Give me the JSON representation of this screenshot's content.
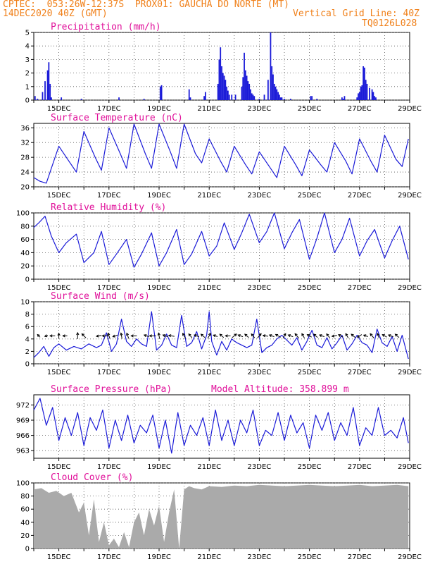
{
  "header": {
    "line1_left": "CPTEC:  053:26W-12:37S  PROX01: GAUCHA DO NORTE (MT)",
    "line2_left": "14DEC2020 40Z (GMT)",
    "line2_right": "Vertical Grid Line: 40Z",
    "line3_right": "TQ0126L028"
  },
  "x_ticks": [
    "15DEC",
    "17DEC",
    "19DEC",
    "21DEC",
    "23DEC",
    "25DEC",
    "27DEC",
    "29DEC"
  ],
  "chart_data": [
    {
      "type": "bar",
      "title": "Precipitation (mm/h)",
      "ylim": [
        0,
        5
      ],
      "yticks": [
        0,
        1,
        2,
        3,
        4,
        5
      ],
      "color": "#1a1ad8",
      "x_days": [
        14.05,
        14.15,
        14.35,
        14.45,
        14.55,
        14.6,
        14.65,
        14.7,
        15.1,
        15.9,
        17.4,
        18.4,
        19.05,
        19.1,
        20.2,
        20.25,
        20.8,
        20.85,
        21.35,
        21.4,
        21.45,
        21.5,
        21.55,
        21.6,
        21.65,
        21.7,
        21.75,
        21.8,
        21.9,
        22.05,
        22.3,
        22.35,
        22.4,
        22.45,
        22.5,
        22.55,
        22.6,
        22.65,
        22.7,
        22.75,
        22.8,
        23.0,
        23.2,
        23.35,
        23.45,
        23.5,
        23.55,
        23.6,
        23.65,
        23.7,
        23.75,
        23.8,
        23.85,
        23.9,
        24.0,
        24.25,
        25.05,
        25.1,
        25.3,
        26.3,
        26.35,
        26.4,
        26.9,
        26.95,
        27.0,
        27.05,
        27.1,
        27.15,
        27.2,
        27.25,
        27.3,
        27.4,
        27.5,
        27.55,
        27.6,
        27.65
      ],
      "values": [
        0.3,
        0.1,
        0.6,
        1.4,
        2.2,
        2.8,
        1.2,
        0.2,
        0.2,
        0.1,
        0.2,
        0.1,
        1.0,
        1.1,
        0.8,
        0.2,
        0.3,
        0.6,
        1.2,
        3.0,
        3.9,
        2.5,
        2.0,
        1.8,
        1.5,
        1.0,
        0.7,
        0.4,
        0.4,
        0.4,
        1.0,
        1.7,
        3.5,
        2.2,
        1.8,
        1.4,
        1.2,
        0.8,
        0.5,
        0.4,
        0.3,
        0.1,
        0.4,
        1.5,
        5.0,
        2.5,
        1.9,
        1.2,
        1.0,
        0.8,
        0.6,
        0.4,
        0.2,
        0.2,
        0.1,
        0.1,
        0.3,
        0.3,
        0.1,
        0.2,
        0.1,
        0.3,
        0.2,
        0.5,
        0.6,
        1.0,
        1.1,
        2.5,
        2.4,
        1.5,
        1.2,
        0.9,
        0.8,
        0.6,
        0.3,
        0.2
      ]
    },
    {
      "type": "line",
      "title": "Surface Temperature (nC)",
      "ylim": [
        20,
        37.2
      ],
      "yticks": [
        20,
        24,
        28,
        32,
        36
      ],
      "color": "#1a1ad8",
      "x_days": [
        14.0,
        14.25,
        14.5,
        14.75,
        15.0,
        15.4,
        15.7,
        16.0,
        16.45,
        16.7,
        17.0,
        17.45,
        17.7,
        18.0,
        18.45,
        18.7,
        19.0,
        19.45,
        19.7,
        20.0,
        20.45,
        20.7,
        21.0,
        21.45,
        21.7,
        22.0,
        22.45,
        22.7,
        23.0,
        23.45,
        23.7,
        24.0,
        24.45,
        24.7,
        25.0,
        25.45,
        25.7,
        26.0,
        26.45,
        26.7,
        27.0,
        27.45,
        27.7,
        28.0,
        28.45,
        28.7,
        28.95
      ],
      "values": [
        22.5,
        21.5,
        21.0,
        26.0,
        31.0,
        27.0,
        24.0,
        35.0,
        28.0,
        24.5,
        36.0,
        29.0,
        25.0,
        37.0,
        29.0,
        25.0,
        37.0,
        29.5,
        25.0,
        37.0,
        29.0,
        26.5,
        33.0,
        27.0,
        24.0,
        31.0,
        26.0,
        23.5,
        29.5,
        25.0,
        22.5,
        31.0,
        26.0,
        23.0,
        30.0,
        26.0,
        24.0,
        32.0,
        27.0,
        23.5,
        33.0,
        27.0,
        24.0,
        34.0,
        27.5,
        25.5,
        33.0
      ]
    },
    {
      "type": "line",
      "title": "Relative Humidity (%)",
      "ylim": [
        0,
        100
      ],
      "yticks": [
        0,
        20,
        40,
        60,
        80,
        100
      ],
      "color": "#1a1ad8",
      "x_days": [
        14.0,
        14.2,
        14.45,
        14.7,
        15.0,
        15.3,
        15.7,
        16.0,
        16.4,
        16.7,
        17.0,
        17.3,
        17.7,
        18.0,
        18.3,
        18.7,
        19.0,
        19.3,
        19.7,
        20.0,
        20.3,
        20.7,
        21.0,
        21.3,
        21.6,
        22.0,
        22.3,
        22.6,
        23.0,
        23.3,
        23.6,
        24.0,
        24.3,
        24.6,
        25.0,
        25.3,
        25.6,
        26.0,
        26.3,
        26.6,
        27.0,
        27.3,
        27.6,
        28.0,
        28.3,
        28.6,
        28.95
      ],
      "values": [
        78,
        85,
        95,
        65,
        40,
        55,
        68,
        25,
        40,
        72,
        22,
        38,
        60,
        18,
        38,
        70,
        20,
        40,
        75,
        22,
        38,
        72,
        35,
        50,
        85,
        45,
        70,
        98,
        55,
        72,
        100,
        46,
        70,
        90,
        30,
        62,
        100,
        40,
        60,
        92,
        35,
        58,
        75,
        32,
        58,
        80,
        30
      ]
    },
    {
      "type": "line",
      "title": "Surface Wind (m/s)",
      "ylim": [
        0,
        10
      ],
      "yticks": [
        0,
        2,
        4,
        6,
        8,
        10
      ],
      "color": "#1a1ad8",
      "x_days": [
        14.0,
        14.2,
        14.4,
        14.6,
        14.8,
        15.0,
        15.3,
        15.6,
        15.9,
        16.2,
        16.5,
        16.7,
        16.9,
        17.1,
        17.3,
        17.5,
        17.7,
        17.9,
        18.1,
        18.3,
        18.5,
        18.7,
        18.9,
        19.1,
        19.3,
        19.5,
        19.7,
        19.9,
        20.1,
        20.3,
        20.5,
        20.7,
        20.9,
        21.0,
        21.1,
        21.3,
        21.5,
        21.7,
        21.9,
        22.1,
        22.3,
        22.5,
        22.7,
        22.9,
        23.1,
        23.3,
        23.5,
        23.7,
        23.9,
        24.1,
        24.3,
        24.5,
        24.7,
        24.9,
        25.1,
        25.3,
        25.5,
        25.7,
        25.9,
        26.1,
        26.3,
        26.5,
        26.7,
        26.9,
        27.1,
        27.3,
        27.5,
        27.7,
        27.9,
        28.1,
        28.3,
        28.5,
        28.7,
        28.95
      ],
      "values": [
        1.0,
        1.8,
        2.8,
        1.2,
        2.6,
        3.2,
        2.2,
        2.8,
        2.4,
        3.2,
        2.6,
        3.0,
        5.0,
        2.0,
        3.2,
        7.2,
        3.6,
        2.8,
        4.0,
        3.2,
        2.8,
        8.4,
        2.2,
        3.0,
        4.8,
        3.0,
        2.6,
        7.8,
        2.8,
        3.4,
        5.2,
        2.4,
        4.6,
        8.4,
        3.6,
        1.4,
        3.6,
        2.2,
        4.0,
        3.4,
        3.0,
        2.6,
        3.0,
        7.2,
        1.8,
        2.6,
        3.0,
        4.0,
        4.6,
        3.8,
        3.0,
        4.2,
        2.2,
        3.6,
        5.4,
        3.0,
        2.6,
        4.2,
        2.4,
        3.4,
        4.6,
        2.2,
        3.2,
        4.6,
        3.4,
        3.0,
        1.8,
        5.6,
        3.4,
        2.8,
        4.4,
        2.0,
        4.6,
        0.8
      ],
      "arrows": {
        "x_days": [
          14.2,
          14.5,
          14.75,
          15.0,
          15.25,
          15.75,
          16.0,
          16.6,
          16.85,
          17.0,
          17.25,
          17.5,
          17.75,
          18.0,
          18.5,
          18.75,
          19.0,
          19.25,
          19.5,
          20.0,
          20.25,
          20.5,
          20.75,
          21.0,
          21.25,
          21.5,
          21.75,
          22.0,
          22.25,
          22.5,
          22.75,
          23.0,
          23.25,
          23.5,
          23.75,
          24.0,
          24.25,
          24.5,
          24.75,
          25.0,
          25.25,
          25.5,
          25.75,
          26.0,
          26.25,
          26.5,
          26.75,
          27.0,
          27.25,
          27.5,
          27.75,
          28.0,
          28.25,
          28.5
        ],
        "dir_deg": [
          225,
          160,
          180,
          270,
          180,
          270,
          225,
          170,
          180,
          250,
          160,
          260,
          250,
          180,
          200,
          180,
          260,
          200,
          190,
          240,
          230,
          200,
          220,
          300,
          200,
          220,
          180,
          320,
          200,
          220,
          230,
          310,
          190,
          200,
          210,
          300,
          200,
          230,
          240,
          210,
          220,
          200,
          230,
          170,
          210,
          240,
          220,
          150,
          200,
          230,
          250,
          210,
          200,
          220
        ],
        "lengths": [
          0.6,
          0.5,
          0.8,
          0.8,
          0.7,
          1.0,
          0.9,
          0.8,
          0.9,
          0.9,
          0.8,
          0.9,
          0.9,
          0.9,
          0.8,
          1.0,
          0.9,
          0.8,
          0.9,
          0.9,
          0.8,
          0.8,
          0.8,
          0.9,
          0.7,
          0.8,
          0.8,
          0.9,
          0.8,
          0.8,
          0.8,
          0.9,
          0.8,
          0.8,
          0.9,
          0.8,
          0.8,
          0.9,
          0.8,
          0.8,
          0.8,
          0.8,
          0.8,
          0.8,
          0.8,
          0.8,
          0.8,
          0.8,
          0.7,
          0.9,
          0.8,
          0.8,
          0.8,
          0.8
        ]
      }
    },
    {
      "type": "line",
      "title": "Surface Pressure (hPa)",
      "subtitle": "Model Altitude: 358.899 m",
      "ylim": [
        961.5,
        974.0
      ],
      "yticks": [
        963,
        966,
        969,
        972
      ],
      "color": "#1a1ad8",
      "x_days": [
        14.0,
        14.25,
        14.5,
        14.75,
        15.0,
        15.25,
        15.5,
        15.75,
        16.0,
        16.25,
        16.5,
        16.75,
        17.0,
        17.25,
        17.5,
        17.75,
        18.0,
        18.25,
        18.5,
        18.75,
        19.0,
        19.25,
        19.5,
        19.75,
        20.0,
        20.25,
        20.5,
        20.75,
        21.0,
        21.25,
        21.5,
        21.75,
        22.0,
        22.25,
        22.5,
        22.75,
        23.0,
        23.25,
        23.5,
        23.75,
        24.0,
        24.25,
        24.5,
        24.75,
        25.0,
        25.25,
        25.5,
        25.75,
        26.0,
        26.25,
        26.5,
        26.75,
        27.0,
        27.25,
        27.5,
        27.75,
        28.0,
        28.25,
        28.5,
        28.75,
        28.95
      ],
      "values": [
        971.0,
        973.3,
        968.0,
        971.5,
        965.0,
        969.5,
        966.0,
        970.5,
        964.0,
        969.5,
        967.0,
        971.0,
        963.5,
        969.0,
        965.0,
        970.0,
        964.5,
        968.0,
        966.5,
        970.0,
        963.5,
        969.0,
        962.5,
        970.5,
        964.0,
        968.0,
        966.0,
        969.5,
        964.0,
        971.0,
        965.0,
        969.0,
        964.0,
        969.0,
        966.5,
        971.0,
        964.0,
        967.0,
        966.0,
        970.5,
        965.0,
        970.0,
        966.5,
        968.5,
        963.5,
        970.0,
        967.0,
        970.5,
        965.0,
        968.5,
        966.0,
        971.5,
        964.0,
        967.5,
        966.0,
        971.5,
        966.0,
        967.0,
        965.5,
        969.5,
        964.5
      ]
    },
    {
      "type": "area",
      "title": "Cloud Cover (%)",
      "ylim": [
        0,
        100
      ],
      "yticks": [
        0,
        20,
        40,
        60,
        80,
        100
      ],
      "color": "#aaaaaa",
      "x_days": [
        14.0,
        14.3,
        14.6,
        14.9,
        15.2,
        15.5,
        15.8,
        16.0,
        16.2,
        16.4,
        16.6,
        16.8,
        17.0,
        17.2,
        17.4,
        17.6,
        17.8,
        18.0,
        18.2,
        18.4,
        18.6,
        18.8,
        19.0,
        19.2,
        19.4,
        19.6,
        19.8,
        20.0,
        20.2,
        20.4,
        20.7,
        21.0,
        21.5,
        22.0,
        22.5,
        23.0,
        23.5,
        24.0,
        24.5,
        25.0,
        25.5,
        26.0,
        26.5,
        27.0,
        27.5,
        28.0,
        28.5,
        28.95
      ],
      "values": [
        90,
        92,
        85,
        88,
        80,
        85,
        55,
        70,
        20,
        75,
        10,
        40,
        5,
        15,
        2,
        25,
        2,
        40,
        55,
        20,
        60,
        35,
        65,
        10,
        55,
        90,
        0,
        90,
        95,
        92,
        90,
        95,
        94,
        96,
        95,
        97,
        96,
        95,
        96,
        97,
        96,
        95,
        96,
        97,
        95,
        96,
        97,
        95
      ]
    }
  ]
}
